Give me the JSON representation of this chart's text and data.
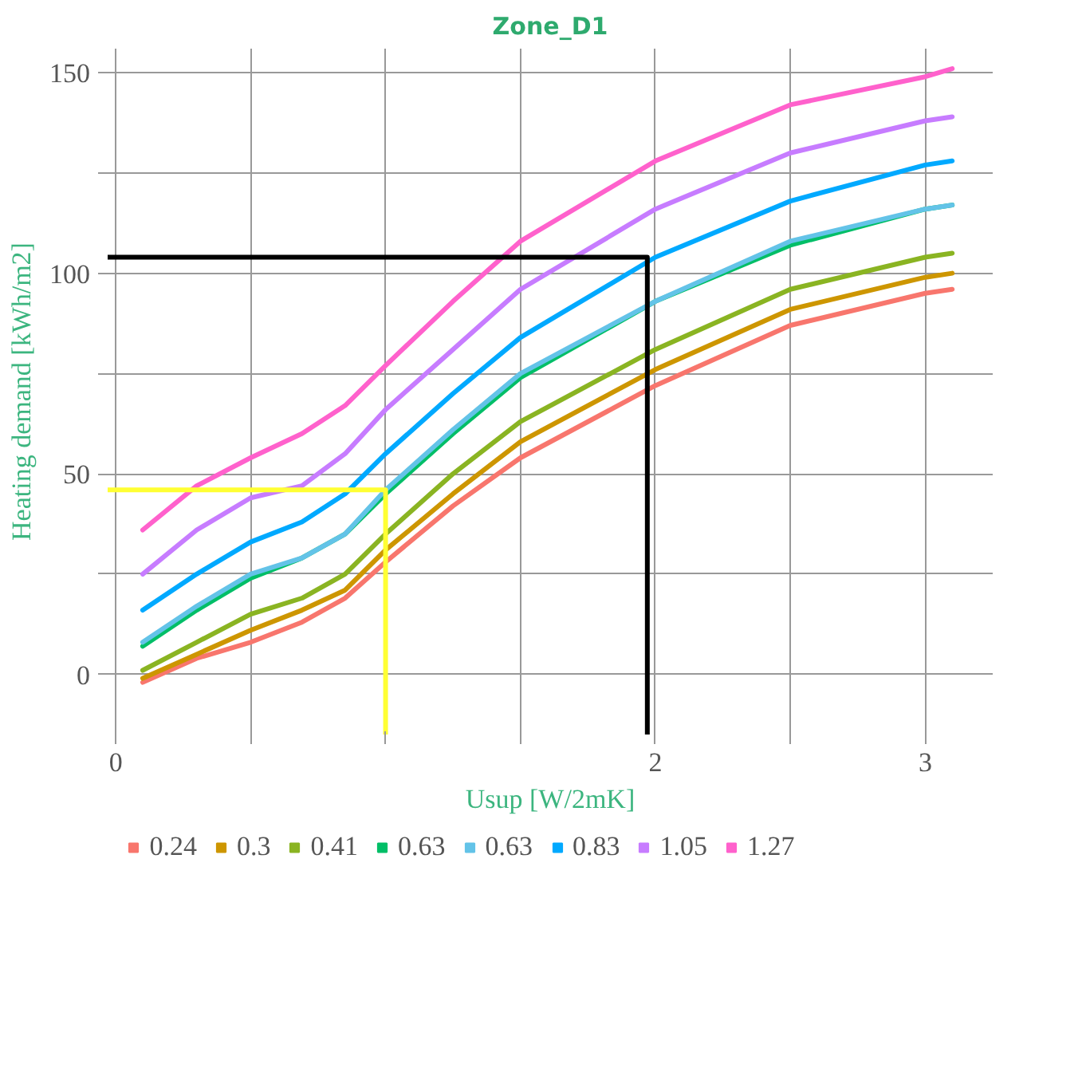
{
  "chart_data": {
    "type": "line",
    "title": "Zone_D1",
    "xlabel": "Usup [W/2mK]",
    "ylabel": "Heating demand [kWh/m2]",
    "x": [
      0.1,
      0.3,
      0.5,
      0.69,
      0.85,
      1.0,
      1.25,
      1.5,
      2.0,
      2.5,
      3.0,
      3.1
    ],
    "series": [
      {
        "name": "0.24",
        "color": "#f8766d",
        "values": [
          -2,
          4,
          8,
          13,
          19,
          28,
          42,
          54,
          72,
          87,
          95,
          96
        ]
      },
      {
        "name": "0.3",
        "color": "#cd9600",
        "values": [
          -1,
          5,
          11,
          16,
          21,
          31,
          45,
          58,
          76,
          91,
          99,
          100
        ]
      },
      {
        "name": "0.41",
        "color": "#8ab422",
        "values": [
          1,
          8,
          15,
          19,
          25,
          35,
          50,
          63,
          81,
          96,
          104,
          105
        ]
      },
      {
        "name": "0.63",
        "color": "#00be67",
        "values": [
          7,
          16,
          24,
          29,
          35,
          45,
          60,
          74,
          93,
          107,
          116,
          117
        ]
      },
      {
        "name": "0.63",
        "color": "#63c3e8",
        "values": [
          8,
          17,
          25,
          29,
          35,
          46,
          61,
          75,
          93,
          108,
          116,
          117
        ]
      },
      {
        "name": "0.83",
        "color": "#00a9ff",
        "values": [
          16,
          25,
          33,
          38,
          45,
          55,
          70,
          84,
          104,
          118,
          127,
          128
        ]
      },
      {
        "name": "1.05",
        "color": "#c77cff",
        "values": [
          25,
          36,
          44,
          47,
          55,
          66,
          81,
          96,
          116,
          130,
          138,
          139
        ]
      },
      {
        "name": "1.27",
        "color": "#ff61cc",
        "values": [
          36,
          47,
          54,
          60,
          67,
          77,
          93,
          108,
          128,
          142,
          149,
          151
        ]
      },
      {
        "color": "#000000",
        "x": [
          -0.03,
          1.97,
          1.97
        ],
        "values": [
          104,
          104,
          -15
        ]
      },
      {
        "color": "#ffff33",
        "x": [
          -0.03,
          1.0,
          1.0
        ],
        "values": [
          46,
          46,
          -15
        ]
      }
    ],
    "xlim": [
      -0.03,
      3.25
    ],
    "ylim": [
      -15,
      156
    ],
    "xticks": [
      0,
      {
        "value": 0.5,
        "label": null
      },
      {
        "value": 1,
        "label": null
      },
      {
        "value": 1.5,
        "label": null
      },
      2,
      {
        "value": 2.5,
        "label": null
      },
      3
    ],
    "yticks": [
      0,
      {
        "value": 25,
        "label": null
      },
      50,
      {
        "value": 75,
        "label": null
      },
      100,
      {
        "value": 125,
        "label": null
      },
      150
    ],
    "grid": true,
    "legend": "bottom",
    "marker": "none",
    "line_style": "solid"
  }
}
